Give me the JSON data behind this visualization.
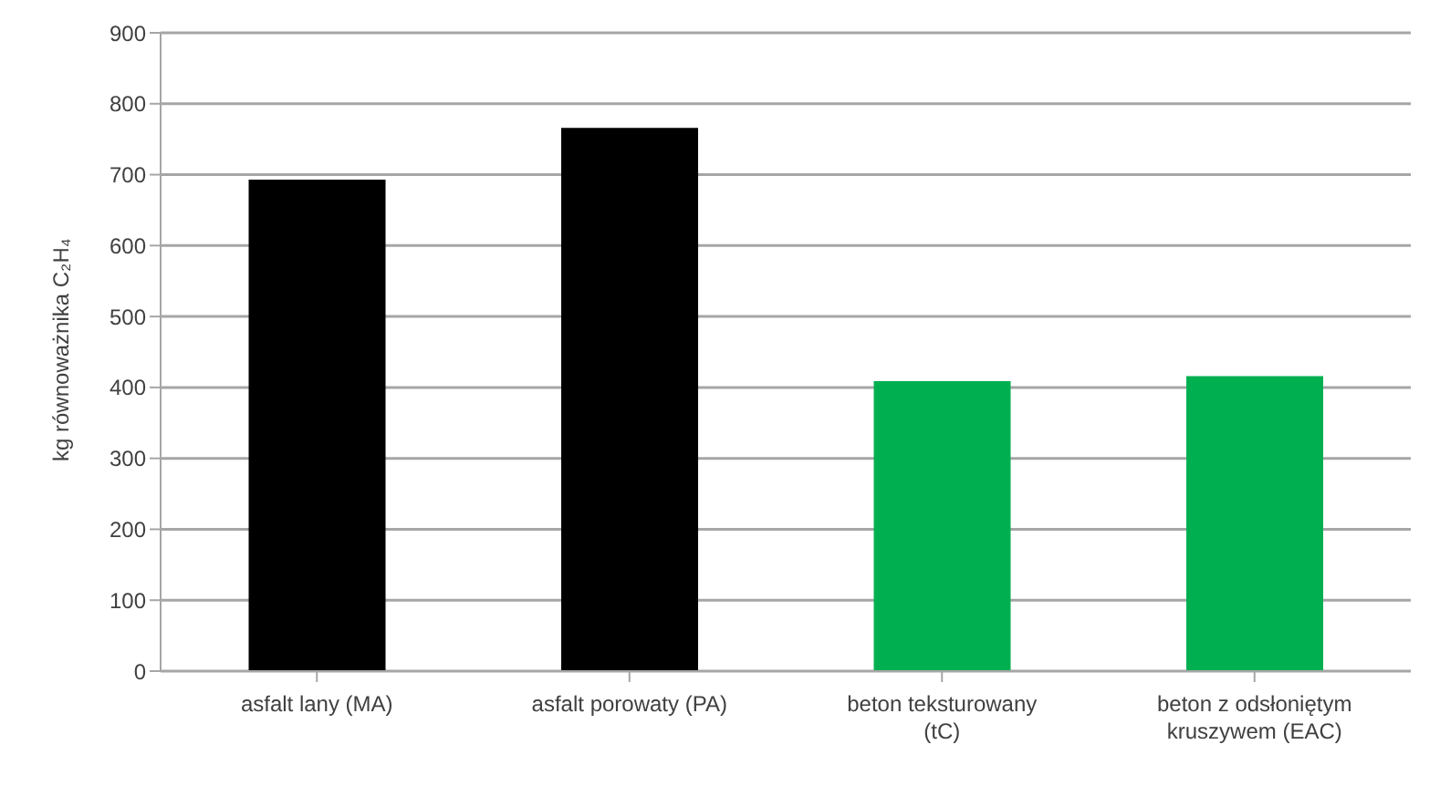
{
  "chart_data": {
    "type": "bar",
    "ylabel": "kg równoważnika C₂H₄",
    "categories": [
      "asfalt lany (MA)",
      "asfalt porowaty (PA)",
      "beton teksturowany (tC)",
      "beton z odsłoniętym kruszywem (EAC)"
    ],
    "values": [
      693,
      766,
      409,
      416
    ],
    "colors": [
      "#000000",
      "#000000",
      "#00b050",
      "#00b050"
    ],
    "ylim": [
      0,
      900
    ],
    "yticks": [
      0,
      100,
      200,
      300,
      400,
      500,
      600,
      700,
      800,
      900
    ],
    "grid": "y"
  }
}
